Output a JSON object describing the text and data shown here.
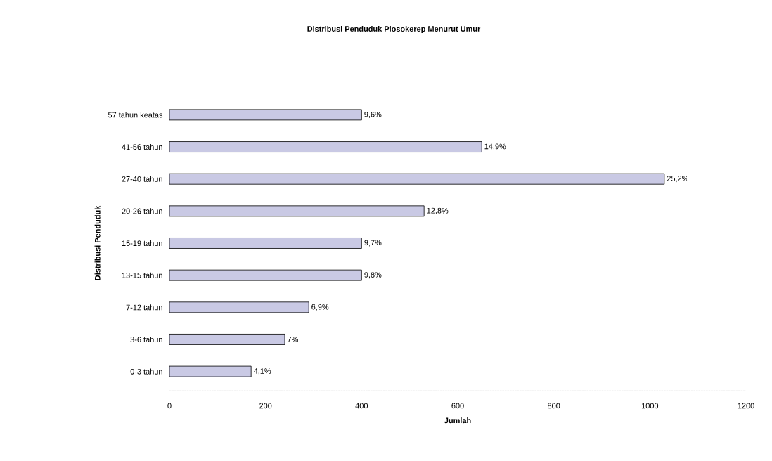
{
  "chart_data": {
    "type": "bar",
    "orientation": "horizontal",
    "title": "Distribusi Penduduk Plosokerep Menurut Umur",
    "xlabel": "Jumlah",
    "ylabel": "Distribusi Penduduk",
    "categories": [
      "57 tahun keatas",
      "41-56 tahun",
      "27-40 tahun",
      "20-26 tahun",
      "15-19 tahun",
      "13-15 tahun",
      "7-12 tahun",
      "3-6 tahun",
      "0-3 tahun"
    ],
    "values": [
      400,
      650,
      1030,
      530,
      400,
      400,
      290,
      240,
      170
    ],
    "annotations": [
      {
        "text": "9,6%",
        "x": 400,
        "y": "57 tahun keatas"
      },
      {
        "text": "14,9%",
        "x": 650,
        "y": "41-56 tahun"
      },
      {
        "text": "25,2%",
        "x": 1030,
        "y": "27-40 tahun"
      },
      {
        "text": "12,8%",
        "x": 530,
        "y": "20-26 tahun"
      },
      {
        "text": "9,7%",
        "x": 400,
        "y": "15-19 tahun"
      },
      {
        "text": "9,8%",
        "x": 400,
        "y": "13-15 tahun"
      },
      {
        "text": "6,9%",
        "x": 290,
        "y": "7-12 tahun"
      },
      {
        "text": "7%",
        "x": 240,
        "y": "3-6 tahun"
      },
      {
        "text": "4,1%",
        "x": 170,
        "y": "0-3 tahun"
      }
    ],
    "color": "#c9c9e4",
    "xlim": [
      0,
      1200
    ],
    "xticks": [
      0,
      200,
      400,
      600,
      800,
      1000,
      1200
    ],
    "grid": false
  }
}
